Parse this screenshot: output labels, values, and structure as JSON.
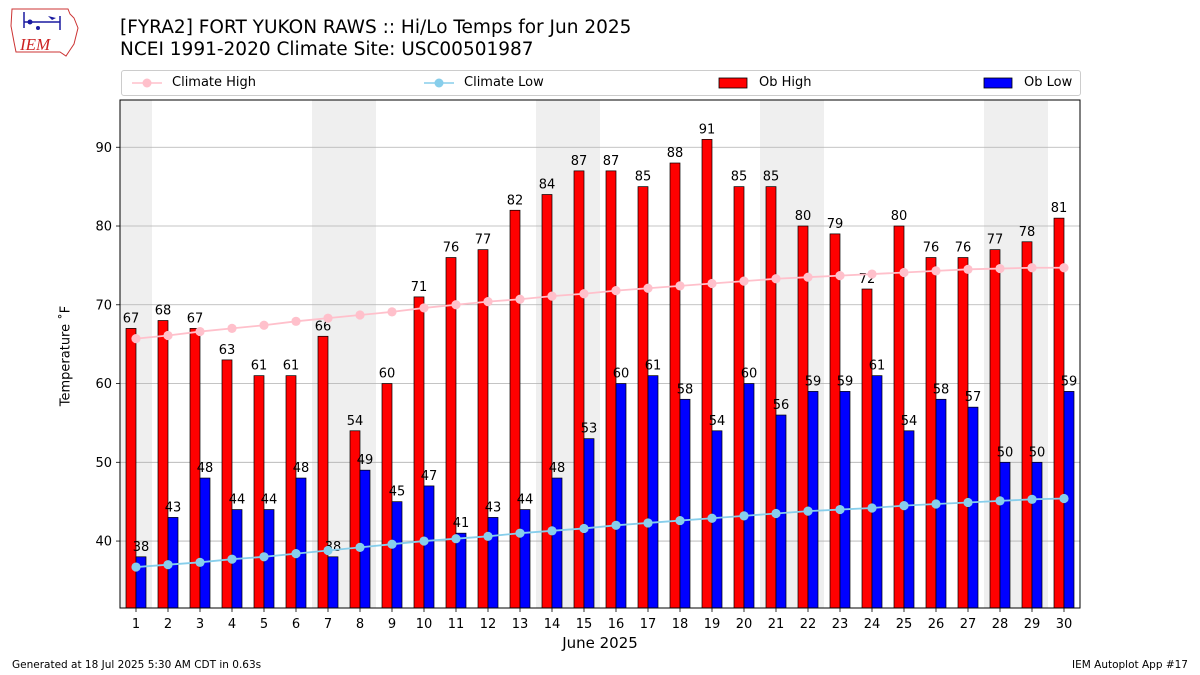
{
  "header": {
    "logo_text": "IEM",
    "title_line1": "[FYRA2] FORT YUKON RAWS :: Hi/Lo Temps for Jun 2025",
    "title_line2": "NCEI 1991-2020 Climate Site: USC00501987"
  },
  "legend": [
    {
      "label": "Climate High",
      "color": "#ffc0cb",
      "kind": "line"
    },
    {
      "label": "Climate Low",
      "color": "#87ceeb",
      "kind": "line"
    },
    {
      "label": "Ob High",
      "color": "#ff0000",
      "kind": "bar"
    },
    {
      "label": "Ob Low",
      "color": "#0000ff",
      "kind": "bar"
    }
  ],
  "footer": {
    "generated": "Generated at 18 Jul 2025 5:30 AM CDT in 0.63s",
    "app": "IEM Autoplot App #17"
  },
  "chart_data": {
    "type": "bar",
    "xlabel": "June 2025",
    "ylabel": "Temperature ˚F",
    "ylim": [
      31.5,
      96
    ],
    "yticks": [
      40,
      50,
      60,
      70,
      80,
      90
    ],
    "grid": "horizontal",
    "legend_position": "top",
    "weekend_shading_days": [
      1,
      7,
      8,
      14,
      15,
      21,
      22,
      28,
      29
    ],
    "categories": [
      "1",
      "2",
      "3",
      "4",
      "5",
      "6",
      "7",
      "8",
      "9",
      "10",
      "11",
      "12",
      "13",
      "14",
      "15",
      "16",
      "17",
      "18",
      "19",
      "20",
      "21",
      "22",
      "23",
      "24",
      "25",
      "26",
      "27",
      "28",
      "29",
      "30"
    ],
    "series": [
      {
        "name": "Ob High",
        "color": "#ff0000",
        "values": [
          67,
          68,
          67,
          63,
          61,
          61,
          66,
          54,
          60,
          71,
          76,
          77,
          82,
          84,
          87,
          87,
          85,
          88,
          91,
          85,
          85,
          80,
          79,
          72,
          80,
          76,
          76,
          77,
          78,
          81
        ]
      },
      {
        "name": "Ob Low",
        "color": "#0000ff",
        "values": [
          38,
          43,
          48,
          44,
          44,
          48,
          38,
          49,
          45,
          47,
          41,
          43,
          44,
          48,
          53,
          60,
          61,
          58,
          54,
          60,
          56,
          59,
          59,
          61,
          54,
          58,
          57,
          50,
          50,
          59
        ]
      },
      {
        "name": "Climate High",
        "color": "#ffc0cb",
        "values": [
          65.7,
          66.1,
          66.6,
          67.0,
          67.4,
          67.9,
          68.3,
          68.7,
          69.1,
          69.6,
          70.0,
          70.4,
          70.7,
          71.1,
          71.4,
          71.8,
          72.1,
          72.4,
          72.7,
          73.0,
          73.3,
          73.5,
          73.7,
          73.9,
          74.1,
          74.3,
          74.5,
          74.6,
          74.7,
          74.7
        ]
      },
      {
        "name": "Climate Low",
        "color": "#87ceeb",
        "values": [
          36.7,
          37.0,
          37.3,
          37.7,
          38.0,
          38.4,
          38.8,
          39.2,
          39.6,
          40.0,
          40.3,
          40.6,
          41.0,
          41.3,
          41.6,
          42.0,
          42.3,
          42.6,
          42.9,
          43.2,
          43.5,
          43.8,
          44.0,
          44.2,
          44.5,
          44.7,
          44.9,
          45.1,
          45.3,
          45.4
        ]
      }
    ]
  }
}
